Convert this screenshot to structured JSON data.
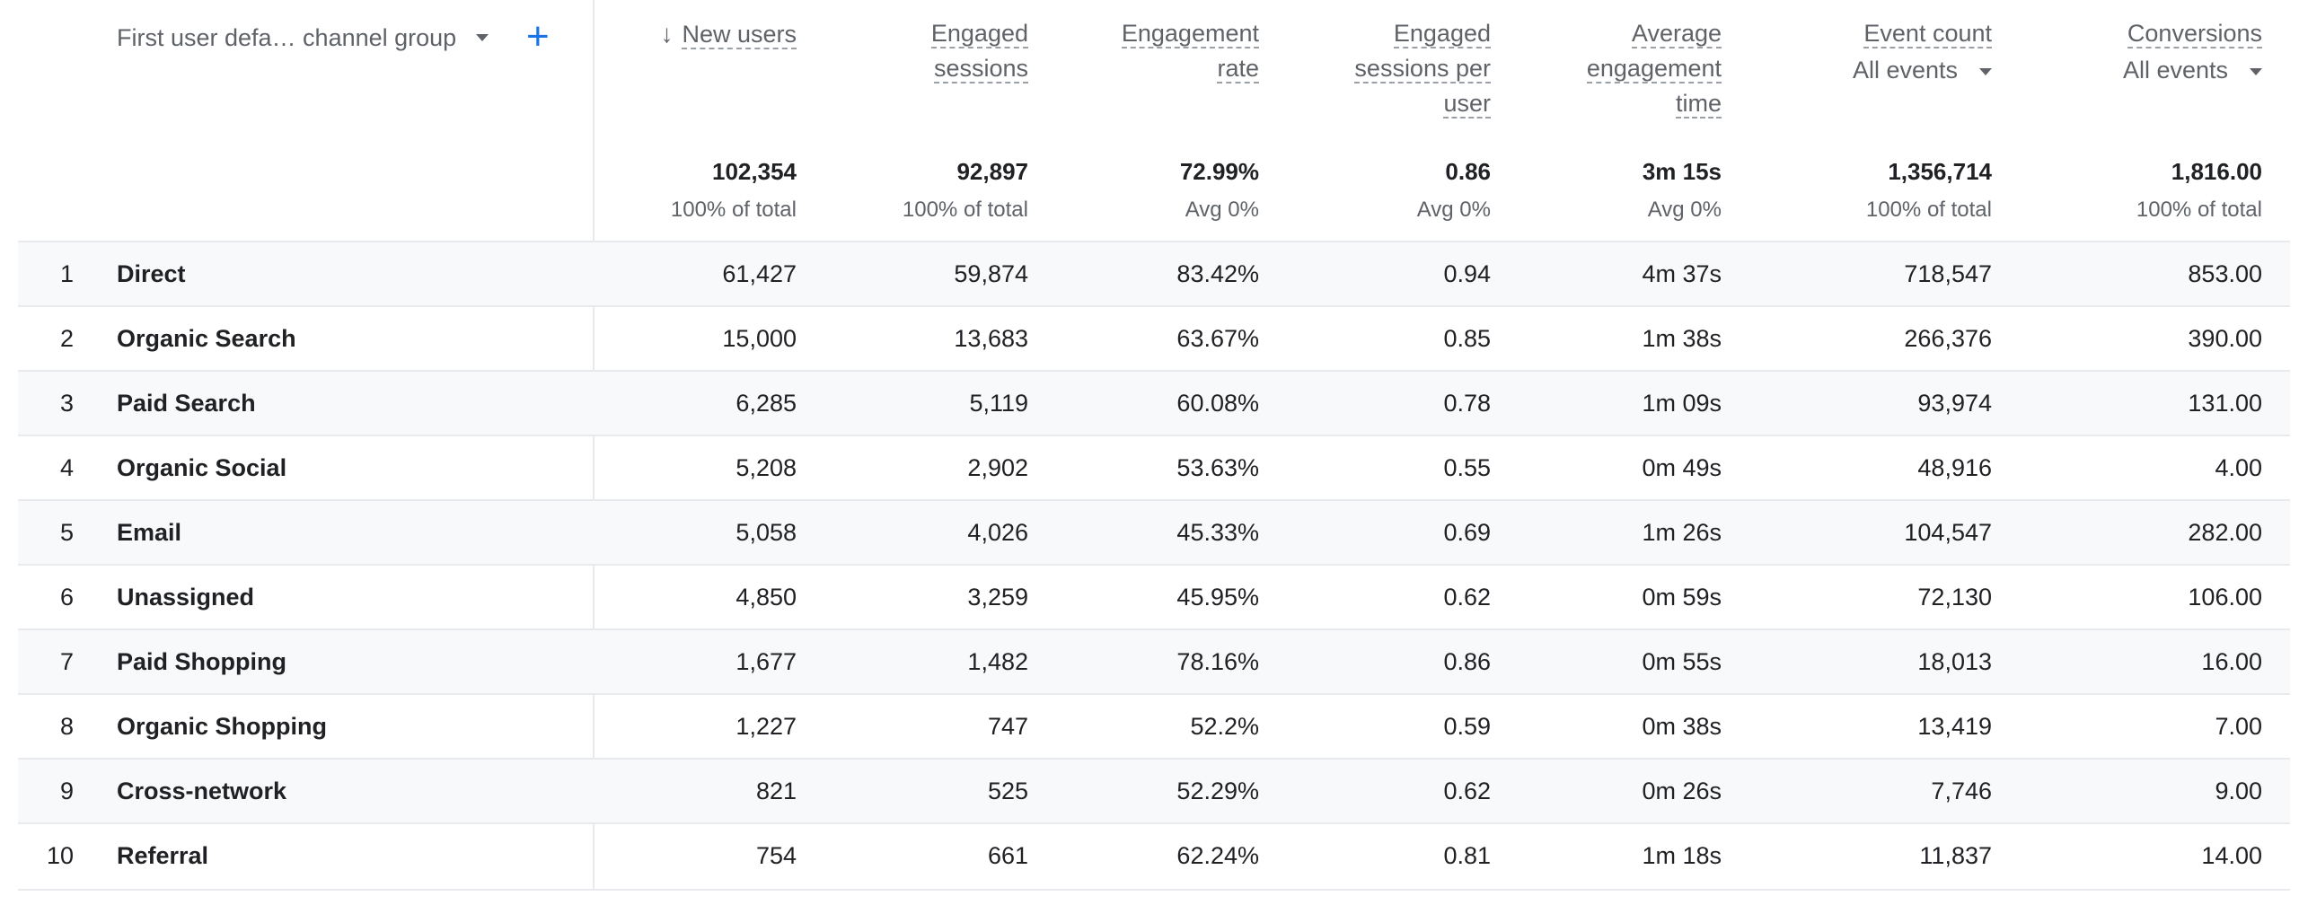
{
  "dimension": {
    "label": "First user defa… channel group",
    "add_label": "+"
  },
  "columns": [
    {
      "key": "new_users",
      "lines": [
        "New users"
      ],
      "sorted": true,
      "sort_icon": "↓"
    },
    {
      "key": "engaged_sessions",
      "lines": [
        "Engaged",
        "sessions"
      ]
    },
    {
      "key": "engagement_rate",
      "lines": [
        "Engagement",
        "rate"
      ]
    },
    {
      "key": "engaged_per_user",
      "lines": [
        "Engaged",
        "sessions per",
        "user"
      ]
    },
    {
      "key": "avg_time",
      "lines": [
        "Average",
        "engagement",
        "time"
      ]
    },
    {
      "key": "event_count",
      "lines": [
        "Event count"
      ],
      "dropdown": "All events"
    },
    {
      "key": "conversions",
      "lines": [
        "Conversions"
      ],
      "dropdown": "All events"
    }
  ],
  "totals": [
    {
      "value": "102,354",
      "sub": "100% of total"
    },
    {
      "value": "92,897",
      "sub": "100% of total"
    },
    {
      "value": "72.99%",
      "sub": "Avg 0%"
    },
    {
      "value": "0.86",
      "sub": "Avg 0%"
    },
    {
      "value": "3m 15s",
      "sub": "Avg 0%"
    },
    {
      "value": "1,356,714",
      "sub": "100% of total"
    },
    {
      "value": "1,816.00",
      "sub": "100% of total"
    }
  ],
  "rows": [
    {
      "idx": "1",
      "name": "Direct",
      "cells": [
        "61,427",
        "59,874",
        "83.42%",
        "0.94",
        "4m 37s",
        "718,547",
        "853.00"
      ]
    },
    {
      "idx": "2",
      "name": "Organic Search",
      "cells": [
        "15,000",
        "13,683",
        "63.67%",
        "0.85",
        "1m 38s",
        "266,376",
        "390.00"
      ]
    },
    {
      "idx": "3",
      "name": "Paid Search",
      "cells": [
        "6,285",
        "5,119",
        "60.08%",
        "0.78",
        "1m 09s",
        "93,974",
        "131.00"
      ]
    },
    {
      "idx": "4",
      "name": "Organic Social",
      "cells": [
        "5,208",
        "2,902",
        "53.63%",
        "0.55",
        "0m 49s",
        "48,916",
        "4.00"
      ]
    },
    {
      "idx": "5",
      "name": "Email",
      "cells": [
        "5,058",
        "4,026",
        "45.33%",
        "0.69",
        "1m 26s",
        "104,547",
        "282.00"
      ]
    },
    {
      "idx": "6",
      "name": "Unassigned",
      "cells": [
        "4,850",
        "3,259",
        "45.95%",
        "0.62",
        "0m 59s",
        "72,130",
        "106.00"
      ]
    },
    {
      "idx": "7",
      "name": "Paid Shopping",
      "cells": [
        "1,677",
        "1,482",
        "78.16%",
        "0.86",
        "0m 55s",
        "18,013",
        "16.00"
      ]
    },
    {
      "idx": "8",
      "name": "Organic Shopping",
      "cells": [
        "1,227",
        "747",
        "52.2%",
        "0.59",
        "0m 38s",
        "13,419",
        "7.00"
      ]
    },
    {
      "idx": "9",
      "name": "Cross-network",
      "cells": [
        "821",
        "525",
        "52.29%",
        "0.62",
        "0m 26s",
        "7,746",
        "9.00"
      ]
    },
    {
      "idx": "10",
      "name": "Referral",
      "cells": [
        "754",
        "661",
        "62.24%",
        "0.81",
        "1m 18s",
        "11,837",
        "14.00"
      ]
    }
  ]
}
